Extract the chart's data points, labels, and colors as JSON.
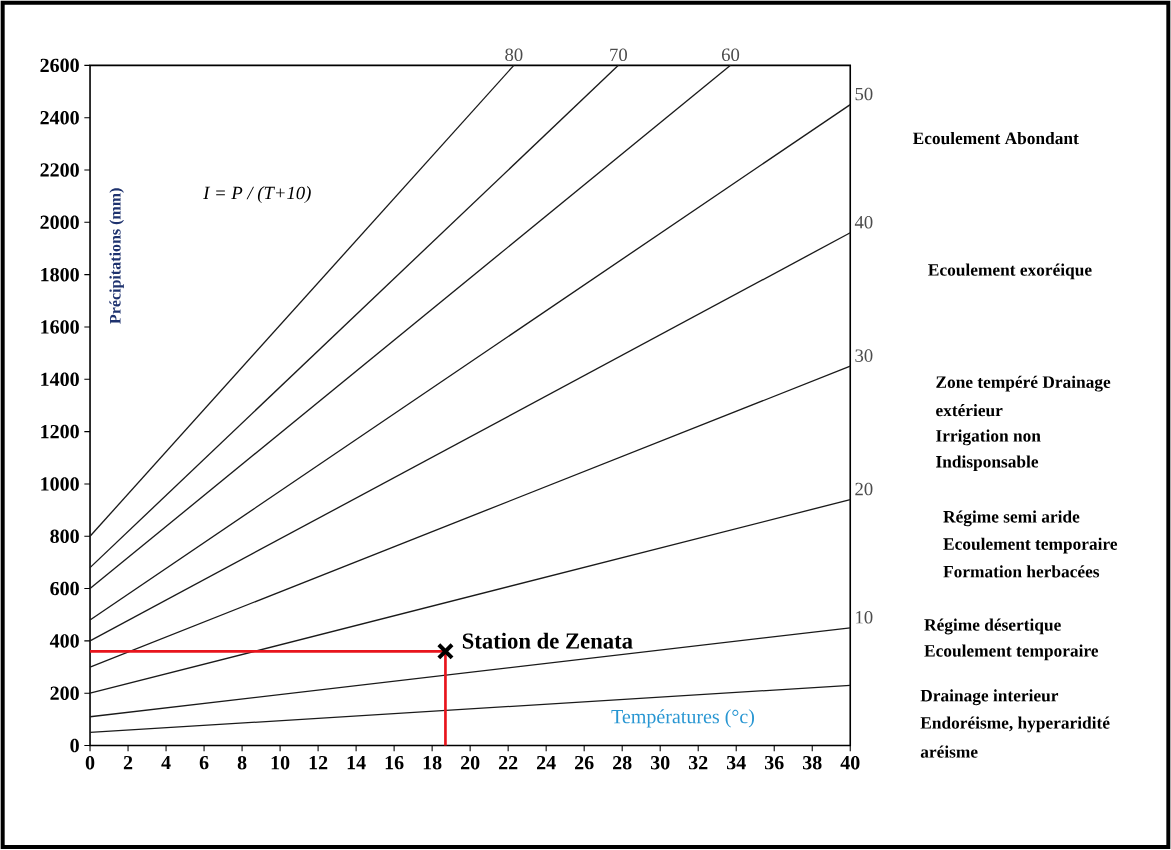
{
  "chart_data": {
    "type": "line",
    "ylabel": "Précipitations (mm)",
    "xlabel": "Températures (°c)",
    "xlim": [
      0,
      40
    ],
    "ylim": [
      0,
      2600
    ],
    "xticks": [
      0,
      2,
      4,
      6,
      8,
      10,
      12,
      14,
      16,
      18,
      20,
      22,
      24,
      26,
      28,
      30,
      32,
      34,
      36,
      38,
      40
    ],
    "yticks": [
      0,
      200,
      400,
      600,
      800,
      1000,
      1200,
      1400,
      1600,
      1800,
      2000,
      2200,
      2400,
      2600
    ],
    "grid": false,
    "legend": false,
    "marker": "none",
    "line_style": "solid",
    "series": [
      {
        "name": "80",
        "color": "#1a1a1a",
        "x": [
          0,
          22.3
        ],
        "values": [
          800,
          2600
        ]
      },
      {
        "name": "70",
        "color": "#1a1a1a",
        "x": [
          0,
          27.8
        ],
        "values": [
          680,
          2600
        ]
      },
      {
        "name": "60",
        "color": "#1a1a1a",
        "x": [
          0,
          33.7
        ],
        "values": [
          600,
          2600
        ]
      },
      {
        "name": "50",
        "color": "#1a1a1a",
        "x": [
          0,
          40
        ],
        "values": [
          480,
          2450
        ]
      },
      {
        "name": "40",
        "color": "#1a1a1a",
        "x": [
          0,
          40
        ],
        "values": [
          400,
          1960
        ]
      },
      {
        "name": "30",
        "color": "#1a1a1a",
        "x": [
          0,
          40
        ],
        "values": [
          300,
          1450
        ]
      },
      {
        "name": "20",
        "color": "#1a1a1a",
        "x": [
          0,
          40
        ],
        "values": [
          200,
          940
        ]
      },
      {
        "name": "10",
        "color": "#1a1a1a",
        "x": [
          0,
          40
        ],
        "values": [
          110,
          450
        ]
      },
      {
        "color": "#1a1a1a",
        "x": [
          0,
          40
        ],
        "values": [
          50,
          230
        ]
      },
      {
        "color": "#e8141c",
        "x": [
          0,
          18.7,
          18.7
        ],
        "values": [
          360,
          360,
          0
        ]
      },
      {
        "type": "scatter",
        "marker": "cross",
        "color": "#000000",
        "x": [
          18.7
        ],
        "values": [
          360
        ]
      }
    ],
    "annotations": [
      "I = P / (T+10)",
      {
        "text": "Station de Zenata",
        "x": 18.7,
        "y": 360
      },
      "Ecoulement Abondant",
      "Ecoulement exoréique",
      "Zone tempéré Drainage",
      "extérieur",
      "Irrigation non",
      "Indisponsable",
      "Régime semi aride",
      "Ecoulement temporaire",
      "Formation herbacées",
      "Régime désertique",
      "Ecoulement temporaire",
      "Drainage interieur",
      "Endoréisme, hyperaridité",
      "aréisme"
    ]
  }
}
